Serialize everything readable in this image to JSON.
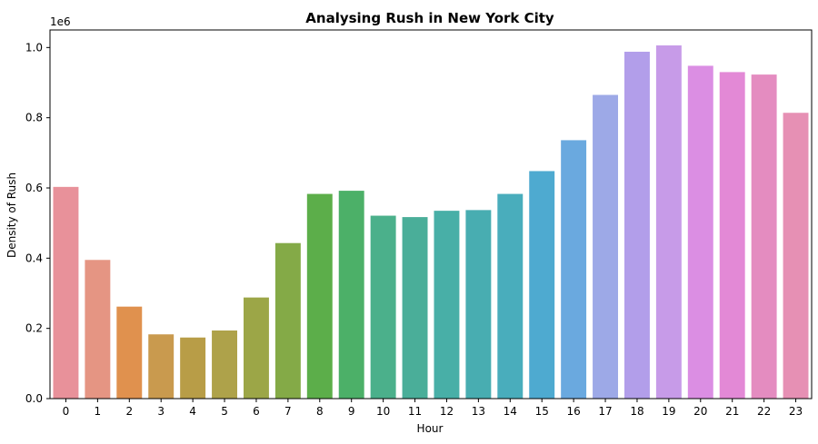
{
  "chart_data": {
    "type": "bar",
    "title": "Analysing Rush in New York City",
    "xlabel": "Hour",
    "ylabel": "Density of Rush",
    "y_offset_text": "1e6",
    "categories": [
      "0",
      "1",
      "2",
      "3",
      "4",
      "5",
      "6",
      "7",
      "8",
      "9",
      "10",
      "11",
      "12",
      "13",
      "14",
      "15",
      "16",
      "17",
      "18",
      "19",
      "20",
      "21",
      "22",
      "23"
    ],
    "values": [
      603000,
      395000,
      262000,
      183000,
      174000,
      194000,
      288000,
      443000,
      583000,
      592000,
      521000,
      517000,
      535000,
      537000,
      583000,
      648000,
      736000,
      865000,
      988000,
      1006000,
      948000,
      930000,
      923000,
      814000
    ],
    "value_scale": 1000000,
    "ylim": [
      0,
      1.05
    ],
    "yticks": [
      0.0,
      0.2,
      0.4,
      0.6,
      0.8,
      1.0
    ],
    "ytick_labels": [
      "0.0",
      "0.2",
      "0.4",
      "0.6",
      "0.8",
      "1.0"
    ],
    "grid": false,
    "legend": "none",
    "colors": [
      "#e8919a",
      "#e59583",
      "#e0914e",
      "#c99a4e",
      "#b89d47",
      "#aea24a",
      "#9ca647",
      "#84aa47",
      "#5cae4a",
      "#4cb068",
      "#4bb08b",
      "#4aae99",
      "#48afa7",
      "#48adb1",
      "#49adbc",
      "#4eaad0",
      "#6aa9df",
      "#9da9e7",
      "#b29eea",
      "#c79be8",
      "#db8ee3",
      "#e389d6",
      "#e48cc0",
      "#e690b4"
    ]
  }
}
